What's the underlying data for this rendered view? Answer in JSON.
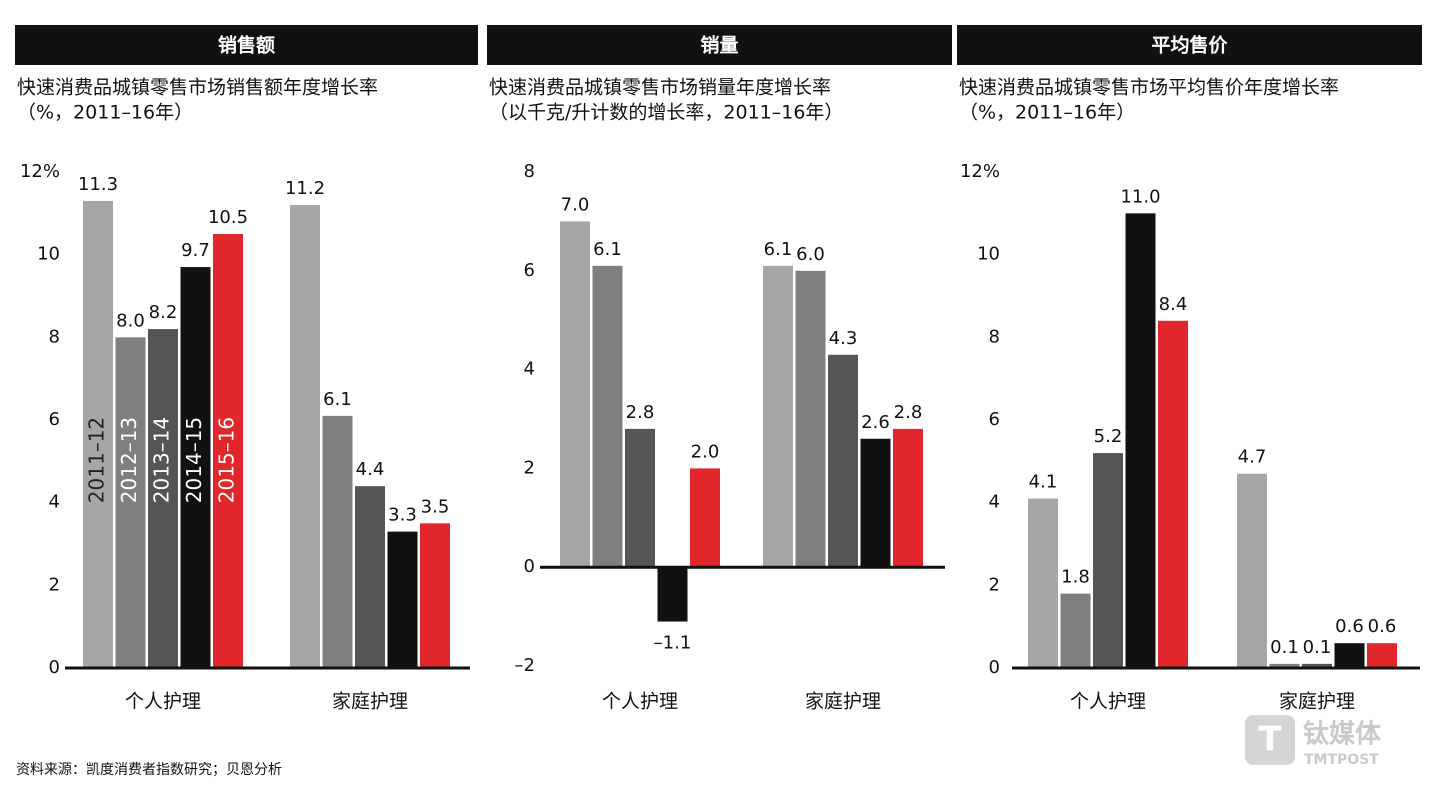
{
  "chart_data": [
    {
      "type": "bar",
      "header": "销售额",
      "title": "快速消费品城镇零售市场销售额年度增长率",
      "subtitle": "（%，2011–16年）",
      "categories": [
        "个人护理",
        "家庭护理"
      ],
      "series": [
        {
          "name": "2011–12",
          "color": "#a6a6a6",
          "values": [
            11.3,
            11.2
          ],
          "value_labels": [
            "11.3",
            "11.2"
          ]
        },
        {
          "name": "2012–13",
          "color": "#7f7f7f",
          "values": [
            8.0,
            6.1
          ],
          "value_labels": [
            "8.0",
            "6.1"
          ]
        },
        {
          "name": "2013–14",
          "color": "#555555",
          "values": [
            8.2,
            4.4
          ],
          "value_labels": [
            "8.2",
            "4.4"
          ]
        },
        {
          "name": "2014–15",
          "color": "#111111",
          "values": [
            9.7,
            3.3
          ],
          "value_labels": [
            "9.7",
            "3.3"
          ]
        },
        {
          "name": "2015–16",
          "color": "#e1262c",
          "values": [
            10.5,
            3.5
          ],
          "value_labels": [
            "10.5",
            "3.5"
          ]
        }
      ],
      "ylim": [
        0,
        12
      ],
      "yticks": [
        0,
        2,
        4,
        6,
        8,
        10,
        {
          "value": 12,
          "label": "12%"
        }
      ]
    },
    {
      "type": "bar",
      "header": "销量",
      "title": "快速消费品城镇零售市场销量年度增长率",
      "subtitle": "（以千克/升计数的增长率，2011–16年）",
      "categories": [
        "个人护理",
        "家庭护理"
      ],
      "series": [
        {
          "color": "#a6a6a6",
          "values": [
            7.0,
            6.1
          ],
          "value_labels": [
            "7.0",
            "6.1"
          ]
        },
        {
          "color": "#7f7f7f",
          "values": [
            6.1,
            6.0
          ],
          "value_labels": [
            "6.1",
            "6.0"
          ]
        },
        {
          "color": "#555555",
          "values": [
            2.8,
            4.3
          ],
          "value_labels": [
            "2.8",
            "4.3"
          ]
        },
        {
          "color": "#111111",
          "values": [
            -1.1,
            2.6
          ],
          "value_labels": [
            "–1.1",
            "2.6"
          ]
        },
        {
          "color": "#e1262c",
          "values": [
            2.0,
            2.8
          ],
          "value_labels": [
            "2.0",
            "2.8"
          ]
        }
      ],
      "ylim": [
        -2,
        8
      ],
      "yticks": [
        {
          "value": -2,
          "label": "–2"
        },
        0,
        2,
        4,
        6,
        8
      ]
    },
    {
      "type": "bar",
      "header": "平均售价",
      "title": "快速消费品城镇零售市场平均售价年度增长率",
      "subtitle": "（%，2011–16年）",
      "categories": [
        "个人护理",
        "家庭护理"
      ],
      "series": [
        {
          "color": "#a6a6a6",
          "values": [
            4.1,
            4.7
          ],
          "value_labels": [
            "4.1",
            "4.7"
          ]
        },
        {
          "color": "#7f7f7f",
          "values": [
            1.8,
            0.1
          ],
          "value_labels": [
            "1.8",
            "0.1"
          ]
        },
        {
          "color": "#555555",
          "values": [
            5.2,
            0.1
          ],
          "value_labels": [
            "5.2",
            "0.1"
          ]
        },
        {
          "color": "#111111",
          "values": [
            11.0,
            0.6
          ],
          "value_labels": [
            "11.0",
            "0.6"
          ]
        },
        {
          "color": "#e1262c",
          "values": [
            8.4,
            0.6
          ],
          "value_labels": [
            "8.4",
            "0.6"
          ]
        }
      ],
      "ylim": [
        0,
        12
      ],
      "yticks": [
        0,
        2,
        4,
        6,
        8,
        10,
        {
          "value": 12,
          "label": "12%"
        }
      ]
    }
  ],
  "source": "资料来源：凯度消费者指数研究；贝恩分析",
  "watermark": {
    "name": "钛媒体",
    "sub": "TMTPOST"
  }
}
